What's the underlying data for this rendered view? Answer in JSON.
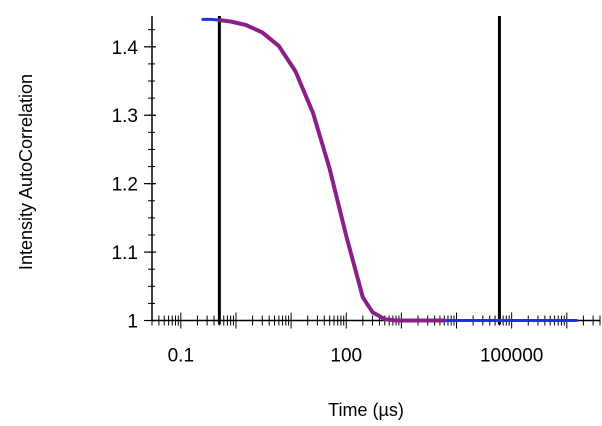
{
  "chart_data": {
    "type": "line",
    "xlabel": "Time (µs)",
    "ylabel": "Intensity AutoCorrelation",
    "x_scale": "log",
    "xlim": [
      0.03,
      4000000
    ],
    "ylim": [
      0.992,
      1.445
    ],
    "x_ticks": [
      {
        "value": 0.1,
        "label": "0.1"
      },
      {
        "value": 100,
        "label": "100"
      },
      {
        "value": 100000,
        "label": "100000"
      }
    ],
    "y_ticks": [
      {
        "value": 1.0,
        "label": "1"
      },
      {
        "value": 1.1,
        "label": "1.1"
      },
      {
        "value": 1.2,
        "label": "1.2"
      },
      {
        "value": 1.3,
        "label": "1.3"
      },
      {
        "value": 1.4,
        "label": "1.4"
      }
    ],
    "vertical_lines": [
      0.5,
      60000
    ],
    "series": [
      {
        "role": "measured",
        "color": "#1f2ee8",
        "x": [
          0.25,
          0.35,
          0.5,
          0.8,
          1.5,
          3,
          6,
          12,
          25,
          50,
          100,
          200,
          300,
          500,
          800,
          1500,
          3000,
          6000,
          20000,
          60000,
          200000,
          600000,
          1500000
        ],
        "y": [
          1.44,
          1.44,
          1.439,
          1.437,
          1.432,
          1.421,
          1.401,
          1.364,
          1.303,
          1.222,
          1.124,
          1.034,
          1.012,
          1.002,
          1.0,
          1.0,
          1.0,
          1.0,
          1.0,
          1.0,
          1.0,
          1.0,
          1.0
        ]
      },
      {
        "role": "fit",
        "color": "#8a1f8a",
        "x": [
          0.5,
          0.8,
          1.5,
          3,
          6,
          12,
          25,
          50,
          100,
          200,
          300,
          500,
          800,
          1500,
          3000,
          6000
        ],
        "y": [
          1.439,
          1.437,
          1.432,
          1.421,
          1.401,
          1.364,
          1.303,
          1.222,
          1.124,
          1.034,
          1.012,
          1.002,
          1.0,
          1.0,
          1.0,
          1.0
        ]
      }
    ]
  }
}
